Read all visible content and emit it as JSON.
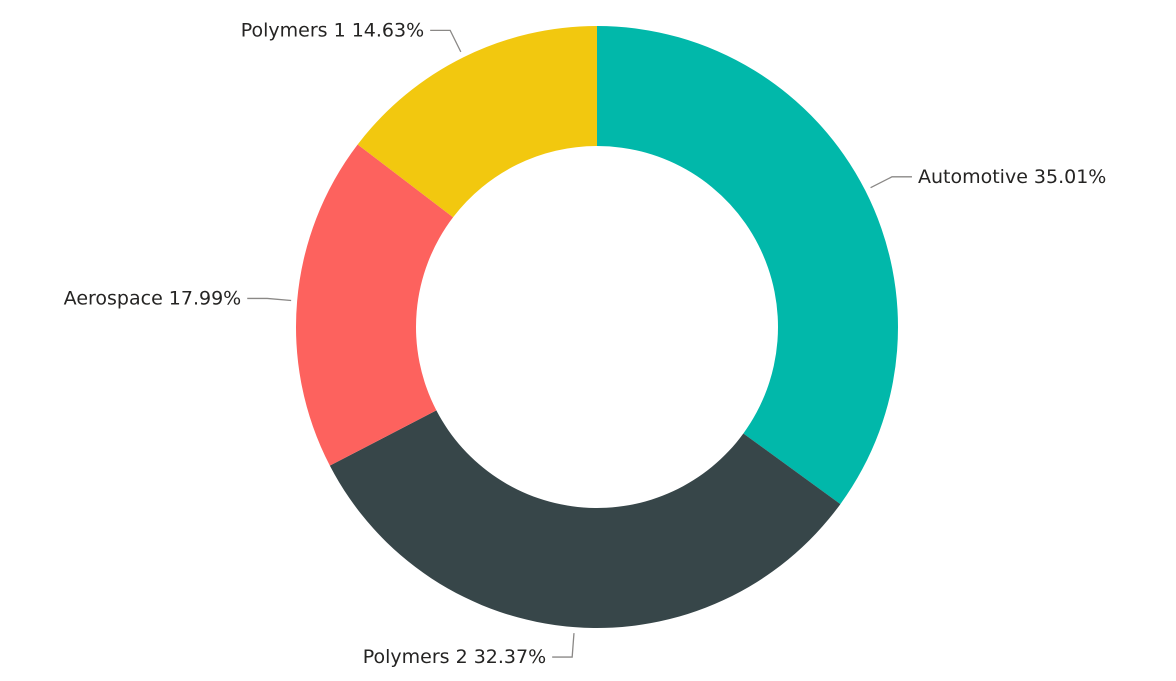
{
  "chart_data": {
    "type": "donut",
    "categories": [
      "Automotive",
      "Polymers 2",
      "Aerospace",
      "Polymers 1"
    ],
    "values": [
      35.01,
      32.37,
      17.99,
      14.63
    ],
    "value_labels": [
      "35.01%",
      "32.37%",
      "17.99%",
      "14.63%"
    ],
    "colors": [
      "#01b8aa",
      "#374649",
      "#fd625e",
      "#f2c80f"
    ]
  }
}
